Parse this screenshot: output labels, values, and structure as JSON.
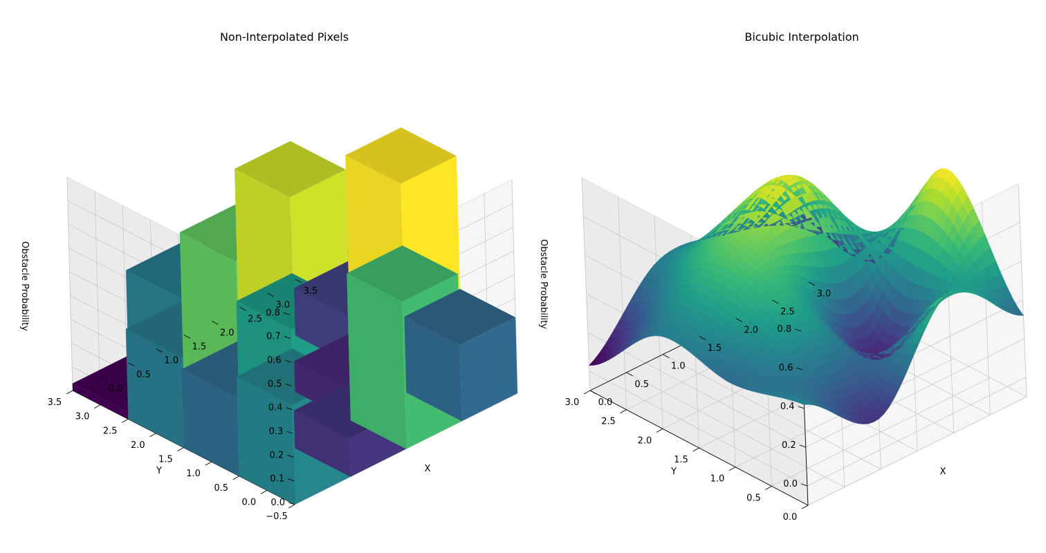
{
  "chart_data": [
    {
      "type": "bar3d",
      "title": "Non-Interpolated Pixels",
      "xlabel": "X",
      "ylabel": "Y",
      "zlabel": "Obstacle Probability",
      "xlim": [
        -0.5,
        3.5
      ],
      "ylim": [
        -0.5,
        3.5
      ],
      "zlim": [
        0,
        0.9
      ],
      "xticks": [
        "0.0",
        "0.5",
        "1.0",
        "1.5",
        "2.0",
        "2.5",
        "3.0",
        "3.5"
      ],
      "xtick_values": [
        0,
        0.5,
        1,
        1.5,
        2,
        2.5,
        3,
        3.5
      ],
      "yticks": [
        "−0.5",
        "0.0",
        "0.5",
        "1.0",
        "1.5",
        "2.0",
        "2.5",
        "3.0",
        "3.5"
      ],
      "ytick_values": [
        -0.5,
        0,
        0.5,
        1,
        1.5,
        2,
        2.5,
        3,
        3.5
      ],
      "zticks": [
        "0.0",
        "0.1",
        "0.2",
        "0.3",
        "0.4",
        "0.5",
        "0.6",
        "0.7",
        "0.8"
      ],
      "ztick_values": [
        0,
        0.1,
        0.2,
        0.3,
        0.4,
        0.5,
        0.6,
        0.7,
        0.8
      ],
      "colormap": "viridis",
      "grid": true,
      "x": [
        0,
        1,
        2,
        3
      ],
      "y": [
        0,
        1,
        2,
        3
      ],
      "values": [
        [
          0.42,
          0.16,
          0.62,
          0.32
        ],
        [
          0.33,
          0.5,
          0.13,
          0.88
        ],
        [
          0.38,
          0.67,
          0.82,
          0.2
        ],
        [
          0.03,
          0.39,
          0.34,
          0.25
        ]
      ]
    },
    {
      "type": "surface",
      "title": "Bicubic Interpolation",
      "xlabel": "X",
      "ylabel": "Y",
      "zlabel": "Obstacle Probability",
      "xlim": [
        0,
        3
      ],
      "ylim": [
        0,
        3
      ],
      "zlim": [
        -0.1,
        1.0
      ],
      "xticks": [
        "0.0",
        "0.5",
        "1.0",
        "1.5",
        "2.0",
        "2.5",
        "3.0"
      ],
      "xtick_values": [
        0,
        0.5,
        1,
        1.5,
        2,
        2.5,
        3
      ],
      "yticks": [
        "0.0",
        "0.5",
        "1.0",
        "1.5",
        "2.0",
        "2.5",
        "3.0"
      ],
      "ytick_values": [
        0,
        0.5,
        1,
        1.5,
        2,
        2.5,
        3
      ],
      "zticks": [
        "0.0",
        "0.2",
        "0.4",
        "0.6",
        "0.8"
      ],
      "ztick_values": [
        0,
        0.2,
        0.4,
        0.6,
        0.8
      ],
      "colormap": "viridis",
      "grid": true,
      "x": [
        0,
        1,
        2,
        3
      ],
      "y": [
        0,
        1,
        2,
        3
      ],
      "values": [
        [
          0.42,
          0.16,
          0.62,
          0.32
        ],
        [
          0.33,
          0.5,
          0.13,
          0.88
        ],
        [
          0.38,
          0.67,
          0.82,
          0.2
        ],
        [
          0.03,
          0.39,
          0.34,
          0.25
        ]
      ]
    }
  ]
}
